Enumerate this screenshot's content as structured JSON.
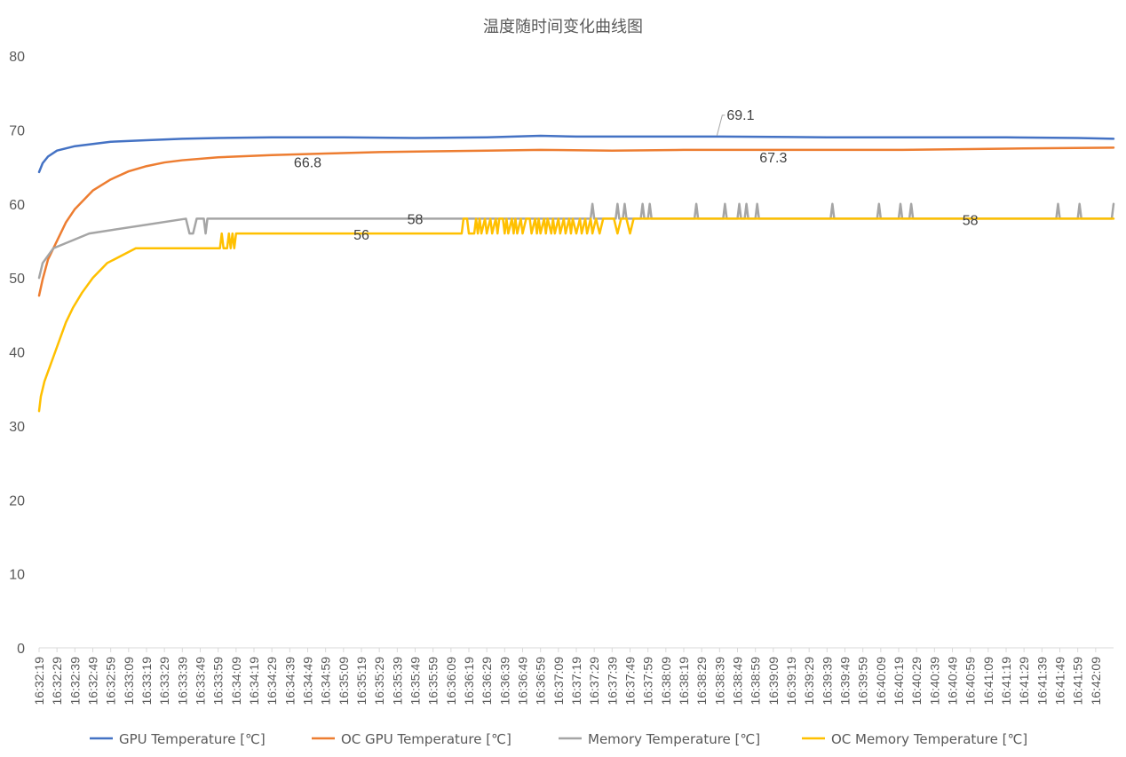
{
  "chart_data": {
    "type": "line",
    "title": "温度随时间变化曲线图",
    "xlabel": "",
    "ylabel": "",
    "ylim": [
      0,
      80
    ],
    "yticks": [
      0,
      10,
      20,
      30,
      40,
      50,
      60,
      70,
      80
    ],
    "grid": false,
    "legend_position": "bottom",
    "x_start": "16:32:19",
    "x_end": "16:42:19",
    "x_sample_interval_seconds": 1,
    "x_tick_labels": [
      "16:32:19",
      "16:32:29",
      "16:32:39",
      "16:32:49",
      "16:32:59",
      "16:33:09",
      "16:33:19",
      "16:33:29",
      "16:33:39",
      "16:33:49",
      "16:33:59",
      "16:34:09",
      "16:34:19",
      "16:34:29",
      "16:34:39",
      "16:34:49",
      "16:34:59",
      "16:35:09",
      "16:35:19",
      "16:35:29",
      "16:35:39",
      "16:35:49",
      "16:35:59",
      "16:36:09",
      "16:36:19",
      "16:36:29",
      "16:36:39",
      "16:36:49",
      "16:36:59",
      "16:37:09",
      "16:37:19",
      "16:37:29",
      "16:37:39",
      "16:37:49",
      "16:37:59",
      "16:38:09",
      "16:38:19",
      "16:38:29",
      "16:38:39",
      "16:38:49",
      "16:38:59",
      "16:39:09",
      "16:39:19",
      "16:39:29",
      "16:39:39",
      "16:39:49",
      "16:39:59",
      "16:40:09",
      "16:40:19",
      "16:40:29",
      "16:40:39",
      "16:40:49",
      "16:40:59",
      "16:41:09",
      "16:41:19",
      "16:41:29",
      "16:41:39",
      "16:41:49",
      "16:41:59",
      "16:42:09"
    ],
    "series": [
      {
        "name": "GPU Temperature [℃]",
        "color": "#4472C4",
        "points": [
          [
            "16:32:19",
            64.3
          ],
          [
            "16:32:21",
            65.5
          ],
          [
            "16:32:24",
            66.4
          ],
          [
            "16:32:29",
            67.2
          ],
          [
            "16:32:39",
            67.8
          ],
          [
            "16:32:49",
            68.1
          ],
          [
            "16:32:59",
            68.4
          ],
          [
            "16:33:19",
            68.6
          ],
          [
            "16:33:39",
            68.8
          ],
          [
            "16:33:59",
            68.9
          ],
          [
            "16:34:29",
            69.0
          ],
          [
            "16:35:09",
            69.0
          ],
          [
            "16:35:49",
            68.9
          ],
          [
            "16:36:29",
            69.0
          ],
          [
            "16:36:59",
            69.2
          ],
          [
            "16:37:19",
            69.1
          ],
          [
            "16:38:09",
            69.1
          ],
          [
            "16:38:39",
            69.1
          ],
          [
            "16:39:39",
            69.0
          ],
          [
            "16:40:39",
            69.0
          ],
          [
            "16:41:19",
            69.0
          ],
          [
            "16:41:59",
            68.9
          ],
          [
            "16:42:19",
            68.8
          ]
        ],
        "labels": [
          {
            "x": "16:38:39",
            "text": "69.1"
          }
        ]
      },
      {
        "name": "OC GPU Temperature [℃]",
        "color": "#ED7D31",
        "points": [
          [
            "16:32:19",
            47.6
          ],
          [
            "16:32:21",
            49.8
          ],
          [
            "16:32:24",
            52.5
          ],
          [
            "16:32:29",
            55.0
          ],
          [
            "16:32:34",
            57.5
          ],
          [
            "16:32:39",
            59.3
          ],
          [
            "16:32:49",
            61.8
          ],
          [
            "16:32:59",
            63.3
          ],
          [
            "16:33:09",
            64.4
          ],
          [
            "16:33:19",
            65.1
          ],
          [
            "16:33:29",
            65.6
          ],
          [
            "16:33:39",
            65.9
          ],
          [
            "16:33:59",
            66.3
          ],
          [
            "16:34:29",
            66.6
          ],
          [
            "16:34:59",
            66.8
          ],
          [
            "16:35:29",
            67.0
          ],
          [
            "16:35:59",
            67.1
          ],
          [
            "16:36:29",
            67.2
          ],
          [
            "16:36:59",
            67.3
          ],
          [
            "16:37:39",
            67.2
          ],
          [
            "16:38:19",
            67.3
          ],
          [
            "16:38:59",
            67.3
          ],
          [
            "16:39:39",
            67.3
          ],
          [
            "16:40:19",
            67.3
          ],
          [
            "16:40:59",
            67.4
          ],
          [
            "16:41:29",
            67.5
          ],
          [
            "16:42:19",
            67.6
          ]
        ],
        "labels": [
          {
            "x": "16:34:49",
            "text": "66.8"
          },
          {
            "x": "16:39:09",
            "text": "67.3"
          }
        ]
      },
      {
        "name": "Memory Temperature [℃]",
        "color": "#A5A5A5",
        "points": [
          [
            "16:32:19",
            50
          ],
          [
            "16:32:21",
            52
          ],
          [
            "16:32:27",
            54
          ],
          [
            "16:32:47",
            56
          ],
          [
            "16:33:41",
            58
          ],
          [
            "16:33:43",
            56
          ],
          [
            "16:33:45",
            56
          ],
          [
            "16:33:47",
            58
          ],
          [
            "16:33:51",
            58
          ],
          [
            "16:33:52",
            56
          ],
          [
            "16:33:53",
            58
          ],
          [
            "16:37:27",
            58
          ],
          [
            "16:37:28",
            60
          ],
          [
            "16:37:29",
            58
          ],
          [
            "16:37:41",
            58
          ],
          [
            "16:37:42",
            60
          ],
          [
            "16:37:43",
            58
          ],
          [
            "16:37:45",
            58
          ],
          [
            "16:37:46",
            60
          ],
          [
            "16:37:47",
            58
          ],
          [
            "16:37:55",
            58
          ],
          [
            "16:37:56",
            60
          ],
          [
            "16:37:57",
            58
          ],
          [
            "16:37:59",
            58
          ],
          [
            "16:38:00",
            60
          ],
          [
            "16:38:01",
            58
          ],
          [
            "16:38:25",
            58
          ],
          [
            "16:38:26",
            60
          ],
          [
            "16:38:27",
            58
          ],
          [
            "16:38:41",
            58
          ],
          [
            "16:38:42",
            60
          ],
          [
            "16:38:43",
            58
          ],
          [
            "16:38:49",
            58
          ],
          [
            "16:38:50",
            60
          ],
          [
            "16:38:51",
            58
          ],
          [
            "16:38:53",
            58
          ],
          [
            "16:38:54",
            60
          ],
          [
            "16:38:55",
            58
          ],
          [
            "16:38:59",
            58
          ],
          [
            "16:39:00",
            60
          ],
          [
            "16:39:01",
            58
          ],
          [
            "16:39:41",
            58
          ],
          [
            "16:39:42",
            60
          ],
          [
            "16:39:43",
            58
          ],
          [
            "16:40:07",
            58
          ],
          [
            "16:40:08",
            60
          ],
          [
            "16:40:09",
            58
          ],
          [
            "16:40:19",
            58
          ],
          [
            "16:40:20",
            60
          ],
          [
            "16:40:21",
            58
          ],
          [
            "16:40:25",
            58
          ],
          [
            "16:40:26",
            60
          ],
          [
            "16:40:27",
            58
          ],
          [
            "16:41:47",
            58
          ],
          [
            "16:41:48",
            60
          ],
          [
            "16:41:49",
            58
          ],
          [
            "16:41:59",
            58
          ],
          [
            "16:42:00",
            60
          ],
          [
            "16:42:01",
            58
          ],
          [
            "16:42:18",
            58
          ],
          [
            "16:42:19",
            60
          ]
        ],
        "labels": [
          {
            "x": "16:35:49",
            "text": "58"
          }
        ]
      },
      {
        "name": "OC Memory Temperature [℃]",
        "color": "#FFC000",
        "points": [
          [
            "16:32:19",
            32
          ],
          [
            "16:32:20",
            34
          ],
          [
            "16:32:22",
            36
          ],
          [
            "16:32:25",
            38
          ],
          [
            "16:32:28",
            40
          ],
          [
            "16:32:31",
            42
          ],
          [
            "16:32:34",
            44
          ],
          [
            "16:32:38",
            46
          ],
          [
            "16:32:43",
            48
          ],
          [
            "16:32:49",
            50
          ],
          [
            "16:32:57",
            52
          ],
          [
            "16:33:13",
            54
          ],
          [
            "16:33:45",
            54
          ],
          [
            "16:34:00",
            54
          ],
          [
            "16:34:01",
            56
          ],
          [
            "16:34:02",
            54
          ],
          [
            "16:34:04",
            54
          ],
          [
            "16:34:05",
            56
          ],
          [
            "16:34:06",
            54
          ],
          [
            "16:34:07",
            56
          ],
          [
            "16:34:08",
            54
          ],
          [
            "16:34:09",
            56
          ],
          [
            "16:34:10",
            56
          ],
          [
            "16:36:15",
            56
          ],
          [
            "16:36:16",
            58
          ],
          [
            "16:36:18",
            58
          ],
          [
            "16:36:19",
            56
          ],
          [
            "16:36:22",
            56
          ],
          [
            "16:36:23",
            58
          ],
          [
            "16:36:24",
            56
          ],
          [
            "16:36:25",
            58
          ],
          [
            "16:36:26",
            56
          ],
          [
            "16:36:28",
            58
          ],
          [
            "16:36:29",
            56
          ],
          [
            "16:36:31",
            58
          ],
          [
            "16:36:32",
            56
          ],
          [
            "16:36:34",
            58
          ],
          [
            "16:36:35",
            56
          ],
          [
            "16:36:36",
            58
          ],
          [
            "16:36:38",
            58
          ],
          [
            "16:36:39",
            56
          ],
          [
            "16:36:40",
            58
          ],
          [
            "16:36:41",
            56
          ],
          [
            "16:36:43",
            58
          ],
          [
            "16:36:44",
            56
          ],
          [
            "16:36:45",
            58
          ],
          [
            "16:36:46",
            56
          ],
          [
            "16:36:48",
            58
          ],
          [
            "16:36:49",
            56
          ],
          [
            "16:36:51",
            58
          ],
          [
            "16:36:53",
            58
          ],
          [
            "16:36:54",
            56
          ],
          [
            "16:36:56",
            58
          ],
          [
            "16:36:57",
            56
          ],
          [
            "16:36:58",
            58
          ],
          [
            "16:36:59",
            56
          ],
          [
            "16:37:01",
            58
          ],
          [
            "16:37:02",
            56
          ],
          [
            "16:37:03",
            58
          ],
          [
            "16:37:05",
            56
          ],
          [
            "16:37:06",
            58
          ],
          [
            "16:37:07",
            56
          ],
          [
            "16:37:09",
            58
          ],
          [
            "16:37:10",
            56
          ],
          [
            "16:37:12",
            58
          ],
          [
            "16:37:13",
            56
          ],
          [
            "16:37:15",
            58
          ],
          [
            "16:37:16",
            56
          ],
          [
            "16:37:17",
            58
          ],
          [
            "16:37:19",
            56
          ],
          [
            "16:37:21",
            58
          ],
          [
            "16:37:22",
            56
          ],
          [
            "16:37:24",
            58
          ],
          [
            "16:37:25",
            56
          ],
          [
            "16:37:27",
            58
          ],
          [
            "16:37:28",
            56
          ],
          [
            "16:37:30",
            58
          ],
          [
            "16:37:32",
            56
          ],
          [
            "16:37:34",
            58
          ],
          [
            "16:37:40",
            58
          ],
          [
            "16:37:42",
            56
          ],
          [
            "16:37:44",
            58
          ],
          [
            "16:37:47",
            58
          ],
          [
            "16:37:49",
            56
          ],
          [
            "16:37:51",
            58
          ],
          [
            "16:42:19",
            58
          ]
        ],
        "labels": [
          {
            "x": "16:35:19",
            "text": "56"
          },
          {
            "x": "16:40:59",
            "text": "58"
          }
        ]
      }
    ]
  }
}
